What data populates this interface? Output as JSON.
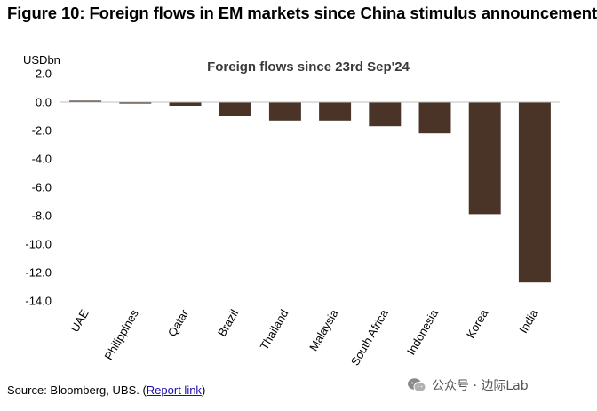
{
  "figure_title": "Figure 10: Foreign flows in EM markets since China stimulus announcement",
  "source": {
    "prefix": "Source: Bloomberg, UBS. (",
    "link_text": "Report link",
    "suffix": ")"
  },
  "watermark": {
    "text": "公众号 · 边际Lab",
    "icon": "wechat-icon"
  },
  "colors": {
    "bar": "#4a3428",
    "axis": "#bfbfbf"
  },
  "chart_data": {
    "type": "bar",
    "title": "Foreign flows since 23rd Sep'24",
    "ylabel": "USDbn",
    "xlabel": "",
    "ylim": [
      -14,
      2
    ],
    "yticks": [
      2.0,
      0.0,
      -2.0,
      -4.0,
      -6.0,
      -8.0,
      -10.0,
      -12.0,
      -14.0
    ],
    "ytick_labels": [
      "2.0",
      "0.0",
      "-2.0",
      "-4.0",
      "-6.0",
      "-8.0",
      "-10.0",
      "-12.0",
      "-14.0"
    ],
    "grid": false,
    "categories": [
      "UAE",
      "Philippines",
      "Qatar",
      "Brazil",
      "Thailand",
      "Malaysia",
      "South Africa",
      "Indonesia",
      "Korea",
      "India"
    ],
    "values": [
      0.1,
      -0.1,
      -0.25,
      -1.0,
      -1.3,
      -1.3,
      -1.7,
      -2.2,
      -7.9,
      -12.7
    ]
  }
}
